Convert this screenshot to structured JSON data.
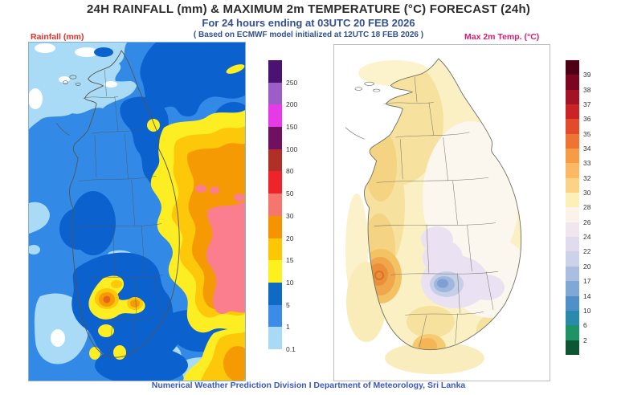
{
  "header": {
    "title": "24H RAINFALL (mm) & MAXIMUM 2m TEMPERATURE (°C) FORECAST (24h)",
    "subtitle": "For 24 hours ending at 03UTC 20 FEB 2026",
    "model_note": "( Based on ECMWF model initialized at 12UTC 18 FEB 2026 )"
  },
  "left_panel": {
    "label": "Rainfall (mm)",
    "label_color": "#e03028",
    "colorbar": {
      "ticks": [
        "250",
        "200",
        "150",
        "100",
        "80",
        "50",
        "30",
        "20",
        "15",
        "10",
        "5",
        "1",
        "0.1"
      ],
      "colors": [
        "#4a1272",
        "#9a5ec6",
        "#e73ae7",
        "#701060",
        "#b03028",
        "#ee2428",
        "#f4766c",
        "#f59400",
        "#fdc704",
        "#fcf01e",
        "#0e6ac4",
        "#3a8ce8",
        "#a8daf5"
      ]
    }
  },
  "right_panel": {
    "label": "Max 2m Temp. (°C)",
    "label_color": "#d81a6e",
    "colorbar": {
      "ticks": [
        "39",
        "38",
        "37",
        "36",
        "35",
        "34",
        "33",
        "32",
        "30",
        "28",
        "26",
        "24",
        "22",
        "20",
        "17",
        "14",
        "10",
        "6",
        "2"
      ],
      "colors": [
        "#4f0014",
        "#7c0622",
        "#a41226",
        "#c92327",
        "#e14a2b",
        "#ee7433",
        "#f79b47",
        "#fbb963",
        "#fcd384",
        "#fcf0b8",
        "#fbf3ea",
        "#f1e6f0",
        "#e2dbee",
        "#ccd2e8",
        "#aabfdf",
        "#80a8d5",
        "#5090c8",
        "#2a8aac",
        "#1f9266",
        "#0c5634"
      ]
    }
  },
  "footer": {
    "credit": "Numerical Weather Prediction Division I Department of Meteorology, Sri Lanka"
  },
  "chart_data": [
    {
      "type": "heatmap",
      "title": "24H Rainfall (mm) forecast contour map over Sri Lanka and surrounding sea",
      "legend_ticks": [
        250,
        200,
        150,
        100,
        80,
        50,
        30,
        20,
        15,
        10,
        5,
        1,
        0.1
      ],
      "units": "mm",
      "legend_position": "right",
      "notes_visible_pattern": "ocean mostly 1-10 mm blues; large 10-50 mm yellow-orange-pink maximum over east and northeast; small 15-30 mm cells in south-central area"
    },
    {
      "type": "heatmap",
      "title": "Maximum 2m Temperature (°C) forecast map of Sri Lanka",
      "legend_ticks": [
        39,
        38,
        37,
        36,
        35,
        34,
        33,
        32,
        30,
        28,
        26,
        24,
        22,
        20,
        17,
        14,
        10,
        6,
        2
      ],
      "units": "°C",
      "legend_position": "right",
      "notes_visible_pattern": "island mostly 28-32; 33-35 spot on west-central coast; 14-22 cool blue-lavender spot over central highlands; pale 26-28 zone in east"
    }
  ]
}
